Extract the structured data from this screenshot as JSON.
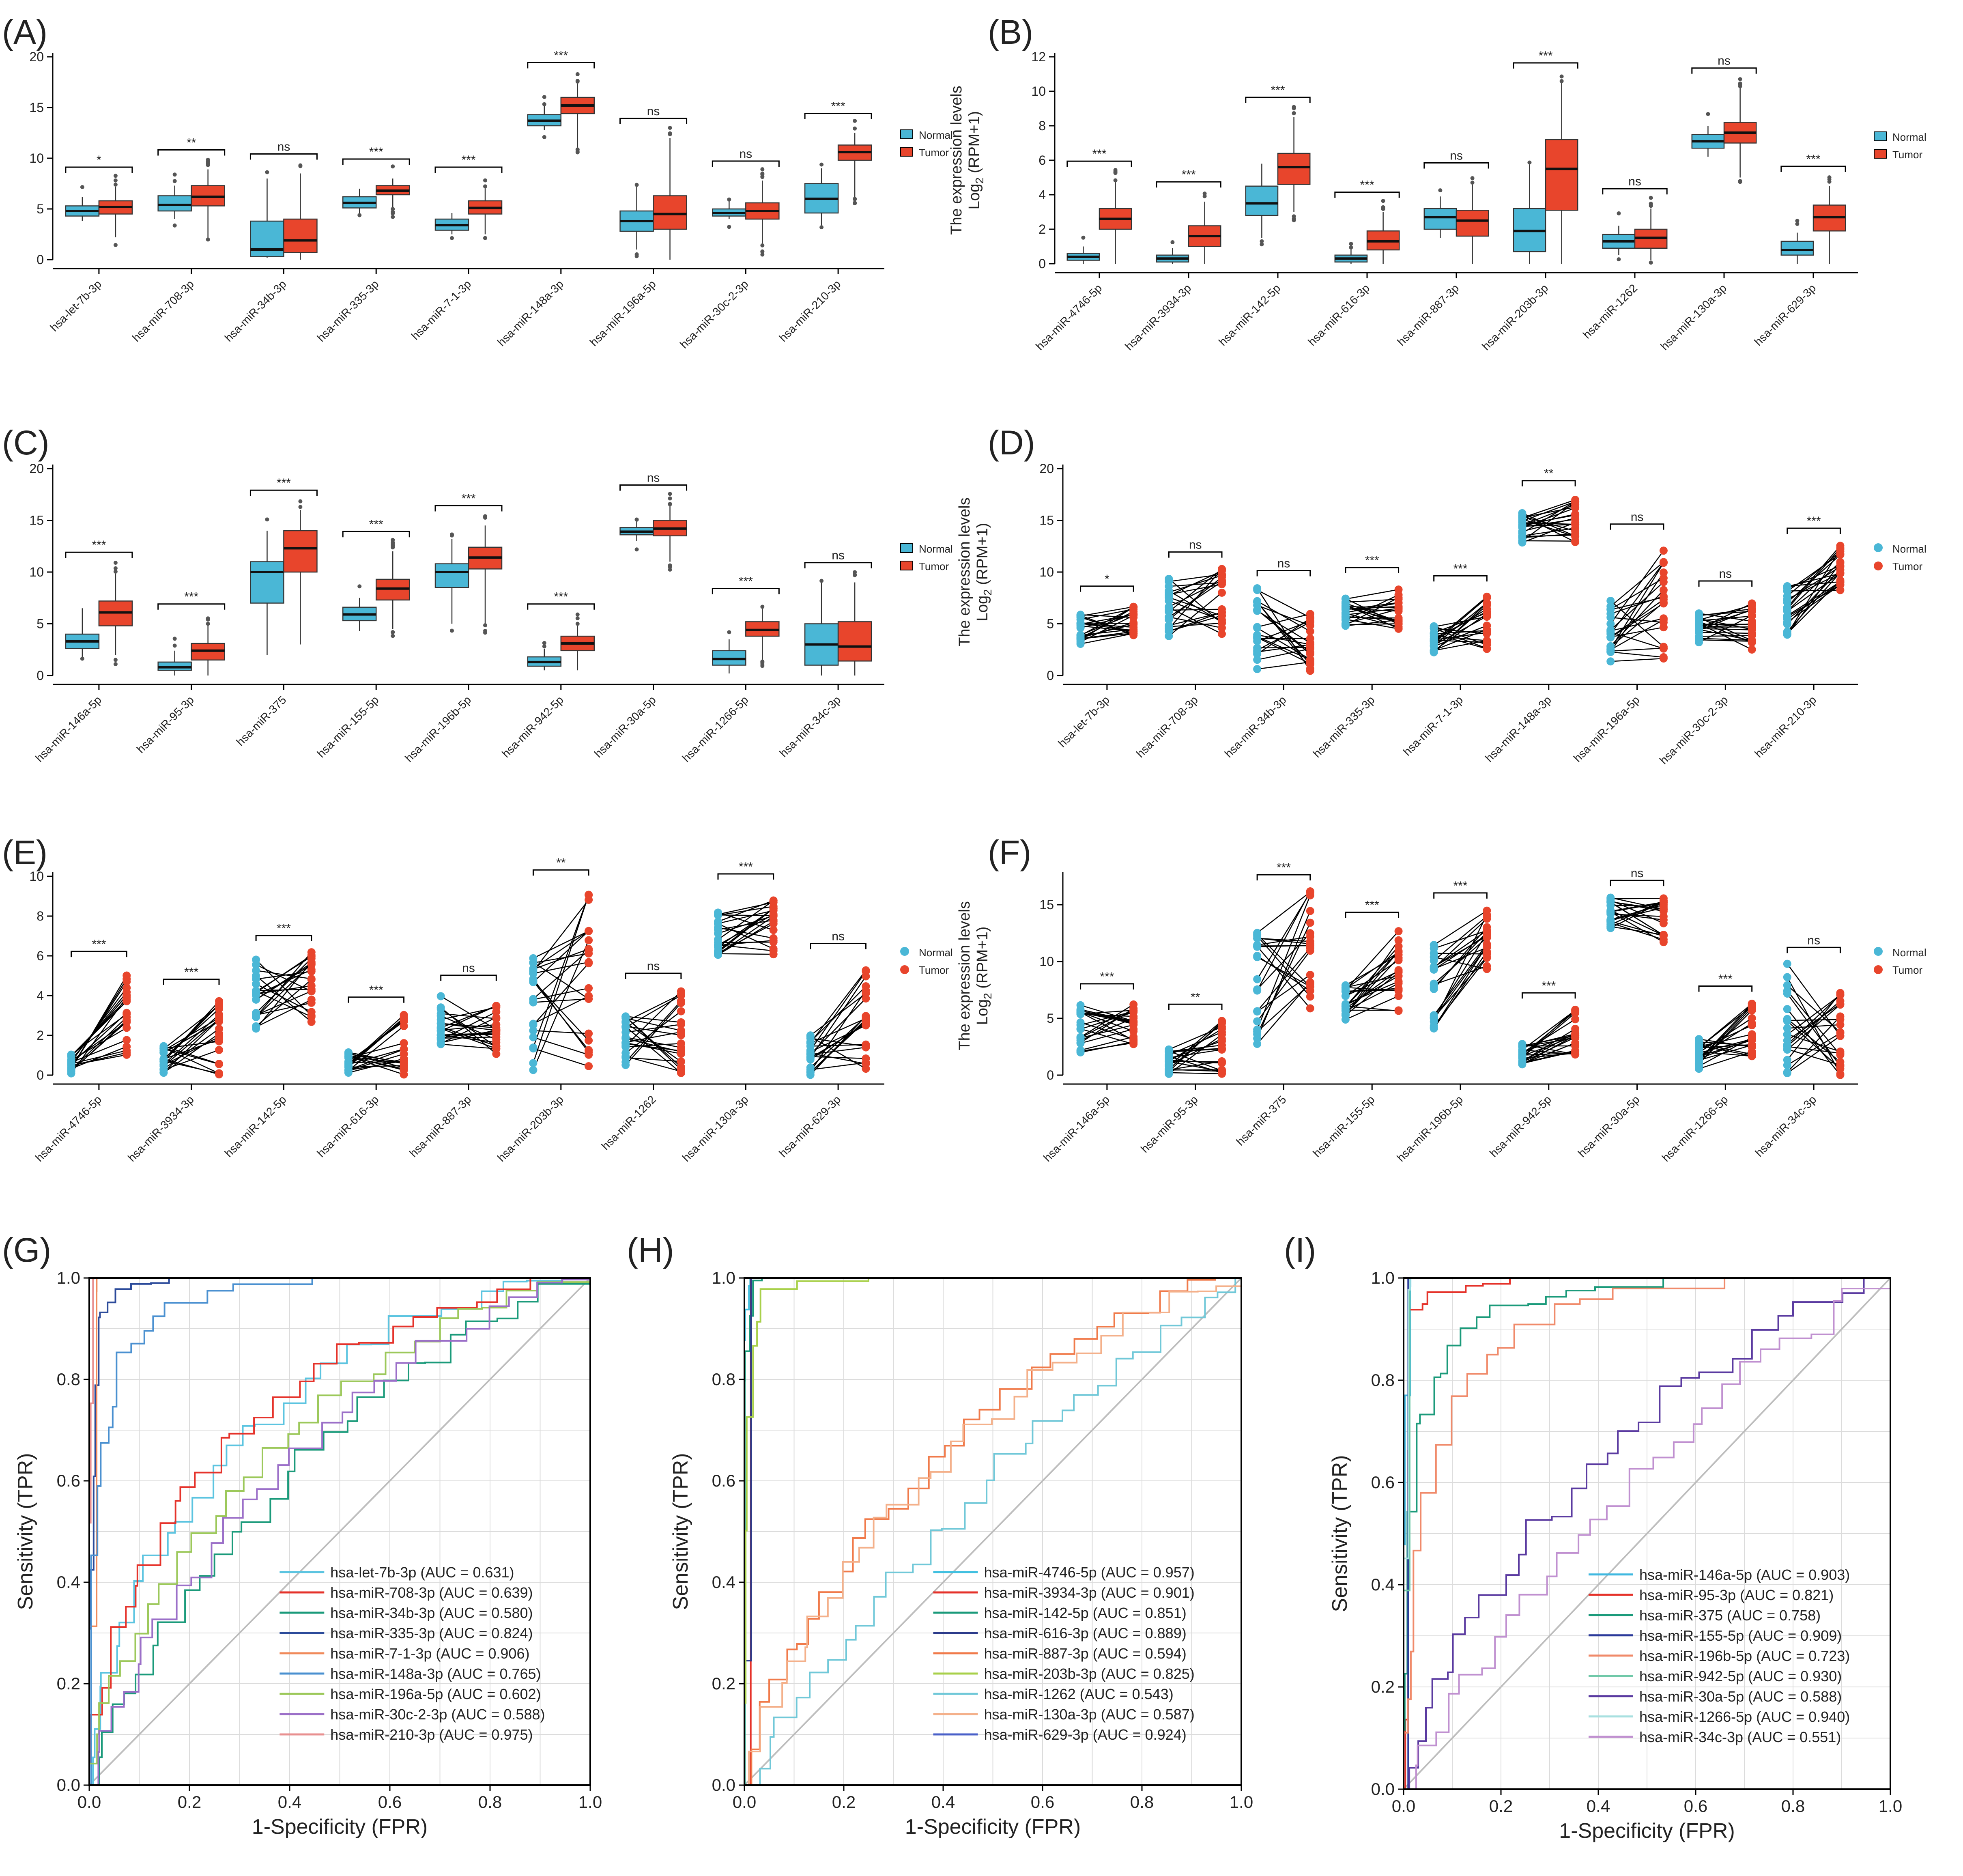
{
  "colors": {
    "normal": "#4ab7d6",
    "tumor": "#e8452c",
    "text": "#222222",
    "grid": "#dcdcdc",
    "axis": "#000000",
    "line": "#000000",
    "diag": "#bdbdbd"
  },
  "common": {
    "ylabel_line1": "The expression levels",
    "ylabel_line2_base": "Log",
    "ylabel_line2_sub": "2",
    "ylabel_line2_rest": " (RPM+1)",
    "legend_normal": "Normal",
    "legend_tumor": "Tumor",
    "roc_xlabel": "1-Specificity (FPR)",
    "roc_ylabel": "Sensitivity (TPR)"
  },
  "chart_data": [
    {
      "id": "A",
      "panel_label": "(A)",
      "type": "box",
      "ylim": [
        0,
        20
      ],
      "yticks": [
        0,
        5,
        10,
        15,
        20
      ],
      "series": [
        {
          "name": "Normal"
        },
        {
          "name": "Tumor"
        }
      ],
      "categories": [
        "hsa-let-7b-3p",
        "hsa-miR-708-3p",
        "hsa-miR-34b-3p",
        "hsa-miR-335-3p",
        "hsa-miR-7-1-3p",
        "hsa-miR-148a-3p",
        "hsa-miR-196a-5p",
        "hsa-miR-30c-2-3p",
        "hsa-miR-210-3p"
      ],
      "significance": [
        "*",
        "**",
        "ns",
        "***",
        "***",
        "***",
        "ns",
        "ns",
        "***"
      ],
      "normal": [
        [
          3.8,
          4.3,
          4.8,
          5.3,
          6.2
        ],
        [
          4.0,
          4.8,
          5.4,
          6.3,
          7.3
        ],
        [
          0.2,
          0.3,
          1.0,
          3.8,
          8.0
        ],
        [
          4.5,
          5.1,
          5.6,
          6.2,
          7.0
        ],
        [
          2.5,
          2.9,
          3.4,
          4.0,
          4.6
        ],
        [
          12.8,
          13.2,
          13.7,
          14.3,
          15.3
        ],
        [
          1.0,
          2.8,
          3.8,
          4.8,
          7.2
        ],
        [
          4.0,
          4.3,
          4.6,
          5.0,
          5.8
        ],
        [
          3.2,
          4.6,
          6.0,
          7.5,
          9.0
        ]
      ],
      "tumor": [
        [
          2.2,
          4.5,
          5.2,
          5.8,
          7.2
        ],
        [
          2.0,
          5.3,
          6.2,
          7.3,
          8.9
        ],
        [
          0.0,
          0.7,
          1.9,
          4.0,
          8.5
        ],
        [
          5.0,
          6.4,
          6.8,
          7.3,
          8.0
        ],
        [
          2.5,
          4.5,
          5.1,
          5.8,
          7.2
        ],
        [
          11.0,
          14.4,
          15.2,
          16.0,
          17.5
        ],
        [
          0.0,
          3.0,
          4.5,
          6.3,
          12.0
        ],
        [
          1.5,
          4.0,
          4.8,
          5.6,
          7.8
        ],
        [
          6.0,
          9.8,
          10.6,
          11.3,
          12.5
        ]
      ]
    },
    {
      "id": "B",
      "panel_label": "(B)",
      "type": "box",
      "ylim": [
        0,
        12
      ],
      "yticks": [
        0,
        2,
        4,
        6,
        8,
        10,
        12
      ],
      "series": [
        {
          "name": "Normal"
        },
        {
          "name": "Tumor"
        }
      ],
      "categories": [
        "hsa-miR-4746-5p",
        "hsa-miR-3934-3p",
        "hsa-miR-142-5p",
        "hsa-miR-616-3p",
        "hsa-miR-887-3p",
        "hsa-miR-203b-3p",
        "hsa-miR-1262",
        "hsa-miR-130a-3p",
        "hsa-miR-629-3p"
      ],
      "significance": [
        "***",
        "***",
        "***",
        "***",
        "ns",
        "***",
        "ns",
        "ns",
        "***"
      ],
      "normal": [
        [
          0.0,
          0.2,
          0.4,
          0.6,
          1.0
        ],
        [
          0.0,
          0.1,
          0.3,
          0.5,
          0.9
        ],
        [
          1.5,
          2.8,
          3.5,
          4.5,
          5.8
        ],
        [
          0.0,
          0.1,
          0.3,
          0.5,
          0.9
        ],
        [
          1.5,
          2.0,
          2.7,
          3.2,
          3.9
        ],
        [
          0.0,
          0.7,
          1.9,
          3.2,
          5.8
        ],
        [
          0.5,
          0.9,
          1.3,
          1.7,
          2.2
        ],
        [
          6.2,
          6.7,
          7.1,
          7.5,
          8.0
        ],
        [
          0.0,
          0.5,
          0.8,
          1.3,
          1.8
        ]
      ],
      "tumor": [
        [
          0.0,
          2.0,
          2.6,
          3.2,
          4.8
        ],
        [
          0.0,
          1.0,
          1.6,
          2.2,
          3.6
        ],
        [
          3.0,
          4.6,
          5.6,
          6.4,
          8.5
        ],
        [
          0.0,
          0.8,
          1.3,
          1.9,
          3.0
        ],
        [
          0.0,
          1.6,
          2.5,
          3.1,
          4.7
        ],
        [
          0.0,
          3.1,
          5.5,
          7.2,
          10.5
        ],
        [
          0.2,
          0.9,
          1.5,
          2.0,
          3.2
        ],
        [
          5.0,
          7.0,
          7.6,
          8.2,
          10.2
        ],
        [
          0.0,
          1.9,
          2.7,
          3.4,
          4.5
        ]
      ]
    },
    {
      "id": "C",
      "panel_label": "(C)",
      "type": "box",
      "ylim": [
        0,
        20
      ],
      "yticks": [
        0,
        5,
        10,
        15,
        20
      ],
      "series": [
        {
          "name": "Normal"
        },
        {
          "name": "Tumor"
        }
      ],
      "categories": [
        "hsa-miR-146a-5p",
        "hsa-miR-95-3p",
        "hsa-miR-375",
        "hsa-miR-155-5p",
        "hsa-miR-196b-5p",
        "hsa-miR-942-5p",
        "hsa-miR-30a-5p",
        "hsa-miR-1266-5p",
        "hsa-miR-34c-3p"
      ],
      "significance": [
        "***",
        "***",
        "***",
        "***",
        "***",
        "***",
        "ns",
        "***",
        "ns"
      ],
      "normal": [
        [
          1.8,
          2.6,
          3.3,
          4.0,
          6.5
        ],
        [
          0.0,
          0.5,
          0.8,
          1.3,
          2.4
        ],
        [
          2.0,
          7.0,
          10.0,
          11.0,
          14.0
        ],
        [
          4.3,
          5.3,
          5.9,
          6.6,
          7.5
        ],
        [
          5.0,
          8.5,
          10.0,
          10.8,
          13.2
        ],
        [
          0.5,
          0.9,
          1.3,
          1.8,
          2.6
        ],
        [
          13.0,
          13.6,
          13.9,
          14.3,
          15.0
        ],
        [
          0.2,
          1.0,
          1.6,
          2.4,
          3.5
        ],
        [
          0.0,
          1.0,
          3.0,
          5.0,
          9.0
        ]
      ],
      "tumor": [
        [
          2.0,
          4.8,
          6.1,
          7.2,
          10.0
        ],
        [
          0.0,
          1.5,
          2.4,
          3.1,
          5.0
        ],
        [
          3.0,
          10.0,
          12.3,
          14.0,
          16.0
        ],
        [
          4.5,
          7.3,
          8.4,
          9.3,
          12.0
        ],
        [
          5.0,
          10.3,
          11.4,
          12.4,
          14.5
        ],
        [
          0.5,
          2.4,
          3.1,
          3.8,
          5.0
        ],
        [
          11.0,
          13.5,
          14.2,
          15.0,
          16.5
        ],
        [
          1.5,
          3.8,
          4.4,
          5.2,
          6.5
        ],
        [
          0.0,
          1.4,
          2.8,
          5.2,
          9.0
        ]
      ]
    },
    {
      "id": "D",
      "panel_label": "(D)",
      "type": "paired",
      "ylim": [
        0,
        20
      ],
      "yticks": [
        0,
        5,
        10,
        15,
        20
      ],
      "series": [
        {
          "name": "Normal"
        },
        {
          "name": "Tumor"
        }
      ],
      "categories": [
        "hsa-let-7b-3p",
        "hsa-miR-708-3p",
        "hsa-miR-34b-3p",
        "hsa-miR-335-3p",
        "hsa-miR-7-1-3p",
        "hsa-miR-148a-3p",
        "hsa-miR-196a-5p",
        "hsa-miR-30c-2-3p",
        "hsa-miR-210-3p"
      ],
      "significance": [
        "*",
        "ns",
        "ns",
        "***",
        "***",
        "**",
        "ns",
        "ns",
        "***"
      ],
      "n_pairs": 22,
      "normal_range": [
        [
          3.0,
          6.3
        ],
        [
          3.2,
          9.6
        ],
        [
          0.2,
          8.5
        ],
        [
          4.3,
          7.5
        ],
        [
          2.2,
          4.8
        ],
        [
          12.8,
          16.0
        ],
        [
          1.0,
          7.3
        ],
        [
          3.2,
          6.0
        ],
        [
          3.8,
          8.8
        ]
      ],
      "tumor_range": [
        [
          3.9,
          7.0
        ],
        [
          3.7,
          10.3
        ],
        [
          0.0,
          6.0
        ],
        [
          4.2,
          8.8
        ],
        [
          2.4,
          8.0
        ],
        [
          12.8,
          17.2
        ],
        [
          0.0,
          13.0
        ],
        [
          2.5,
          7.5
        ],
        [
          8.2,
          12.6
        ]
      ]
    },
    {
      "id": "E",
      "panel_label": "(E)",
      "type": "paired",
      "ylim": [
        0,
        10
      ],
      "yticks": [
        0,
        2,
        4,
        6,
        8,
        10
      ],
      "series": [
        {
          "name": "Normal"
        },
        {
          "name": "Tumor"
        }
      ],
      "categories": [
        "hsa-miR-4746-5p",
        "hsa-miR-3934-3p",
        "hsa-miR-142-5p",
        "hsa-miR-616-3p",
        "hsa-miR-887-3p",
        "hsa-miR-203b-3p",
        "hsa-miR-1262",
        "hsa-miR-130a-3p",
        "hsa-miR-629-3p"
      ],
      "significance": [
        "***",
        "***",
        "***",
        "***",
        "ns",
        "**",
        "ns",
        "***",
        "ns"
      ],
      "n_pairs": 22,
      "normal_range": [
        [
          0.0,
          1.2
        ],
        [
          0.0,
          1.5
        ],
        [
          2.0,
          5.9
        ],
        [
          0.0,
          1.2
        ],
        [
          1.5,
          4.0
        ],
        [
          0.0,
          5.9
        ],
        [
          0.3,
          3.0
        ],
        [
          6.0,
          8.3
        ],
        [
          0.0,
          2.0
        ]
      ],
      "tumor_range": [
        [
          1.0,
          5.4
        ],
        [
          0.0,
          4.0
        ],
        [
          2.5,
          6.2
        ],
        [
          0.0,
          3.1
        ],
        [
          1.0,
          4.2
        ],
        [
          0.0,
          9.5
        ],
        [
          0.0,
          4.3
        ],
        [
          6.0,
          9.3
        ],
        [
          0.3,
          5.8
        ]
      ]
    },
    {
      "id": "F",
      "panel_label": "(F)",
      "type": "paired",
      "ylim": [
        0,
        17.5
      ],
      "yticks": [
        0,
        5,
        10,
        15
      ],
      "series": [
        {
          "name": "Normal"
        },
        {
          "name": "Tumor"
        }
      ],
      "categories": [
        "hsa-miR-146a-5p",
        "hsa-miR-95-3p",
        "hsa-miR-375",
        "hsa-miR-155-5p",
        "hsa-miR-196b-5p",
        "hsa-miR-942-5p",
        "hsa-miR-30a-5p",
        "hsa-miR-1266-5p",
        "hsa-miR-34c-3p"
      ],
      "significance": [
        "***",
        "**",
        "***",
        "***",
        "***",
        "***",
        "ns",
        "***",
        "ns"
      ],
      "n_pairs": 22,
      "normal_range": [
        [
          2.0,
          6.6
        ],
        [
          0.0,
          2.7
        ],
        [
          2.0,
          13.5
        ],
        [
          4.8,
          8.0
        ],
        [
          3.8,
          11.5
        ],
        [
          0.7,
          2.8
        ],
        [
          12.8,
          15.7
        ],
        [
          0.5,
          3.5
        ],
        [
          0.0,
          9.8
        ]
      ],
      "tumor_range": [
        [
          2.4,
          6.5
        ],
        [
          0.0,
          4.8
        ],
        [
          5.8,
          16.2
        ],
        [
          5.2,
          12.9
        ],
        [
          9.3,
          14.6
        ],
        [
          1.8,
          5.8
        ],
        [
          11.7,
          15.7
        ],
        [
          1.5,
          6.4
        ],
        [
          0.0,
          7.5
        ]
      ]
    },
    {
      "id": "G",
      "panel_label": "(G)",
      "type": "line",
      "xlim": [
        0,
        1
      ],
      "ylim": [
        0,
        1
      ],
      "xticks": [
        0.0,
        0.2,
        0.4,
        0.6,
        0.8,
        1.0
      ],
      "yticks": [
        0.0,
        0.2,
        0.4,
        0.6,
        0.8,
        1.0
      ],
      "tick_labels": [
        "0.0",
        "0.2",
        "0.4",
        "0.6",
        "0.8",
        "1.0"
      ],
      "series": [
        {
          "name": "hsa-let-7b-3p (AUC = 0.631)",
          "auc": 0.631,
          "color": "#5bc4e0"
        },
        {
          "name": "hsa-miR-708-3p (AUC = 0.639)",
          "auc": 0.639,
          "color": "#e5322a"
        },
        {
          "name": "hsa-miR-34b-3p (AUC = 0.580)",
          "auc": 0.58,
          "color": "#1a9a7a"
        },
        {
          "name": "hsa-miR-335-3p (AUC = 0.824)",
          "auc": 0.824,
          "color": "#2b4a9a"
        },
        {
          "name": "hsa-miR-7-1-3p (AUC = 0.906)",
          "auc": 0.906,
          "color": "#f08a5a"
        },
        {
          "name": "hsa-miR-148a-3p (AUC = 0.765)",
          "auc": 0.765,
          "color": "#4a90d0"
        },
        {
          "name": "hsa-miR-196a-5p (AUC = 0.602)",
          "auc": 0.602,
          "color": "#9cc85a"
        },
        {
          "name": "hsa-miR-30c-2-3p (AUC = 0.588)",
          "auc": 0.588,
          "color": "#9b6fc8"
        },
        {
          "name": "hsa-miR-210-3p (AUC = 0.975)",
          "auc": 0.975,
          "color": "#e89090"
        }
      ]
    },
    {
      "id": "H",
      "panel_label": "(H)",
      "type": "line",
      "xlim": [
        0,
        1
      ],
      "ylim": [
        0,
        1
      ],
      "xticks": [
        0.0,
        0.2,
        0.4,
        0.6,
        0.8,
        1.0
      ],
      "yticks": [
        0.0,
        0.2,
        0.4,
        0.6,
        0.8,
        1.0
      ],
      "tick_labels": [
        "0.0",
        "0.2",
        "0.4",
        "0.6",
        "0.8",
        "1.0"
      ],
      "series": [
        {
          "name": "hsa-miR-4746-5p (AUC = 0.957)",
          "auc": 0.957,
          "color": "#40c0e0"
        },
        {
          "name": "hsa-miR-3934-3p (AUC = 0.901)",
          "auc": 0.901,
          "color": "#e5322a"
        },
        {
          "name": "hsa-miR-142-5p (AUC = 0.851)",
          "auc": 0.851,
          "color": "#1a9a7a"
        },
        {
          "name": "hsa-miR-616-3p (AUC = 0.889)",
          "auc": 0.889,
          "color": "#2b3a8a"
        },
        {
          "name": "hsa-miR-887-3p (AUC = 0.594)",
          "auc": 0.594,
          "color": "#f07a4a"
        },
        {
          "name": "hsa-miR-203b-3p (AUC = 0.825)",
          "auc": 0.825,
          "color": "#a8d04a"
        },
        {
          "name": "hsa-miR-1262 (AUC = 0.543)",
          "auc": 0.543,
          "color": "#70c8d8"
        },
        {
          "name": "hsa-miR-130a-3p (AUC = 0.587)",
          "auc": 0.587,
          "color": "#f4b08a"
        },
        {
          "name": "hsa-miR-629-3p (AUC = 0.924)",
          "auc": 0.924,
          "color": "#4a60c8"
        }
      ]
    },
    {
      "id": "I",
      "panel_label": "(I)",
      "type": "line",
      "xlim": [
        0,
        1
      ],
      "ylim": [
        0,
        1
      ],
      "xticks": [
        0.0,
        0.2,
        0.4,
        0.6,
        0.8,
        1.0
      ],
      "yticks": [
        0.0,
        0.2,
        0.4,
        0.6,
        0.8,
        1.0
      ],
      "tick_labels": [
        "0.0",
        "0.2",
        "0.4",
        "0.6",
        "0.8",
        "1.0"
      ],
      "series": [
        {
          "name": "hsa-miR-146a-5p (AUC = 0.903)",
          "auc": 0.903,
          "color": "#40b8e0"
        },
        {
          "name": "hsa-miR-95-3p (AUC = 0.821)",
          "auc": 0.821,
          "color": "#e5322a"
        },
        {
          "name": "hsa-miR-375 (AUC = 0.758)",
          "auc": 0.758,
          "color": "#1a9a7a"
        },
        {
          "name": "hsa-miR-155-5p (AUC = 0.909)",
          "auc": 0.909,
          "color": "#2b3a9a"
        },
        {
          "name": "hsa-miR-196b-5p (AUC = 0.723)",
          "auc": 0.723,
          "color": "#f08a6a"
        },
        {
          "name": "hsa-miR-942-5p (AUC = 0.930)",
          "auc": 0.93,
          "color": "#70c8a8"
        },
        {
          "name": "hsa-miR-30a-5p (AUC = 0.588)",
          "auc": 0.588,
          "color": "#5a3aa0"
        },
        {
          "name": "hsa-miR-1266-5p (AUC = 0.940)",
          "auc": 0.94,
          "color": "#a8e0e0"
        },
        {
          "name": "hsa-miR-34c-3p (AUC = 0.551)",
          "auc": 0.551,
          "color": "#c090d0"
        }
      ]
    }
  ]
}
